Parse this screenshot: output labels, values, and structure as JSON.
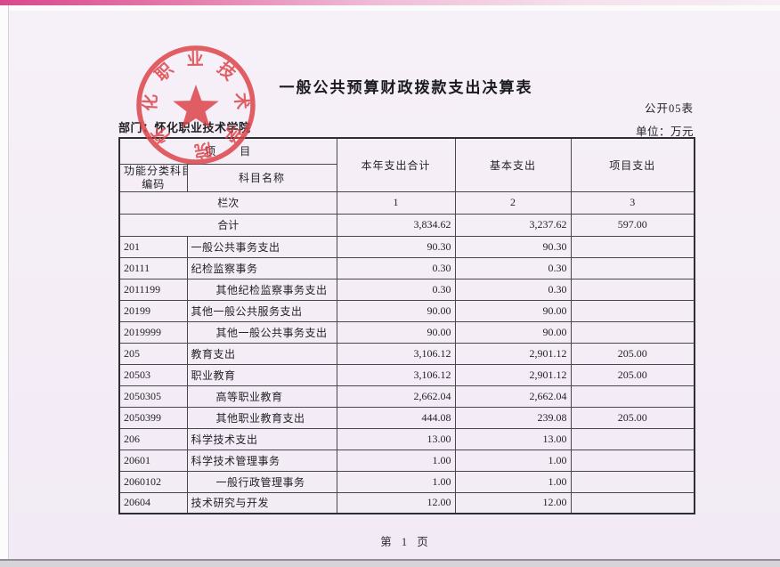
{
  "header": {
    "title": "一般公共预算财政拨款支出决算表",
    "form_code": "公开05表",
    "department_label": "部门：",
    "department_value": "怀化职业技术学院",
    "unit_note": "单位：万元"
  },
  "seal": {
    "text": "怀化职业技术学院",
    "color": "#dd4347"
  },
  "table": {
    "project_header": "项　　目",
    "code_header_line1": "功能分类科目",
    "code_header_line2": "编码",
    "name_header": "科目名称",
    "col_total_header": "本年支出合计",
    "col_basic_header": "基本支出",
    "col_project_header": "项目支出",
    "lanci_label": "栏次",
    "lanci_values": [
      "1",
      "2",
      "3"
    ],
    "total_row": {
      "label": "合计",
      "total": "3,834.62",
      "basic": "3,237.62",
      "project": "597.00"
    },
    "rows": [
      {
        "code": "201",
        "name": "一般公共事务支出",
        "total": "90.30",
        "basic": "90.30",
        "project": ""
      },
      {
        "code": "20111",
        "name": "纪检监察事务",
        "total": "0.30",
        "basic": "0.30",
        "project": ""
      },
      {
        "code": "2011199",
        "name": "其他纪检监察事务支出",
        "total": "0.30",
        "basic": "0.30",
        "project": ""
      },
      {
        "code": "20199",
        "name": "其他一般公共服务支出",
        "total": "90.00",
        "basic": "90.00",
        "project": ""
      },
      {
        "code": "2019999",
        "name": "其他一般公共事务支出",
        "total": "90.00",
        "basic": "90.00",
        "project": ""
      },
      {
        "code": "205",
        "name": "教育支出",
        "total": "3,106.12",
        "basic": "2,901.12",
        "project": "205.00"
      },
      {
        "code": "20503",
        "name": "职业教育",
        "total": "3,106.12",
        "basic": "2,901.12",
        "project": "205.00"
      },
      {
        "code": "2050305",
        "name": "高等职业教育",
        "total": "2,662.04",
        "basic": "2,662.04",
        "project": ""
      },
      {
        "code": "2050399",
        "name": "其他职业教育支出",
        "total": "444.08",
        "basic": "239.08",
        "project": "205.00"
      },
      {
        "code": "206",
        "name": "科学技术支出",
        "total": "13.00",
        "basic": "13.00",
        "project": ""
      },
      {
        "code": "20601",
        "name": "科学技术管理事务",
        "total": "1.00",
        "basic": "1.00",
        "project": ""
      },
      {
        "code": "2060102",
        "name": "一般行政管理事务",
        "total": "1.00",
        "basic": "1.00",
        "project": ""
      },
      {
        "code": "20604",
        "name": "技术研究与开发",
        "total": "12.00",
        "basic": "12.00",
        "project": ""
      }
    ]
  },
  "footer": {
    "page_label": "第 1 页"
  }
}
